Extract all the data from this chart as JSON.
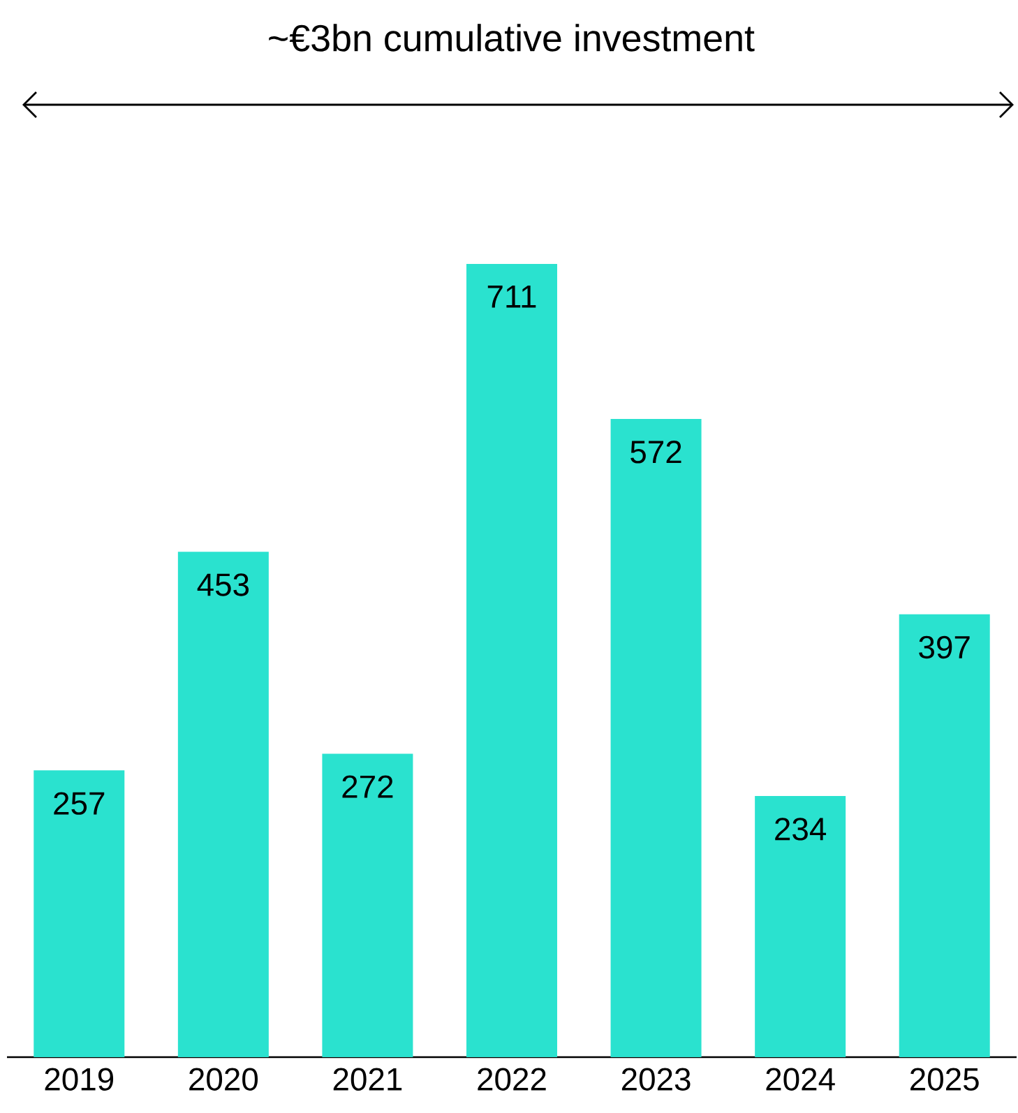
{
  "chart_data": {
    "type": "bar",
    "title": "~€3bn cumulative investment",
    "categories": [
      "2019",
      "2020",
      "2021",
      "2022",
      "2023",
      "2024",
      "2025"
    ],
    "values": [
      257,
      453,
      272,
      711,
      572,
      234,
      397
    ],
    "color": "#2ae2cf",
    "data_labels": true
  }
}
